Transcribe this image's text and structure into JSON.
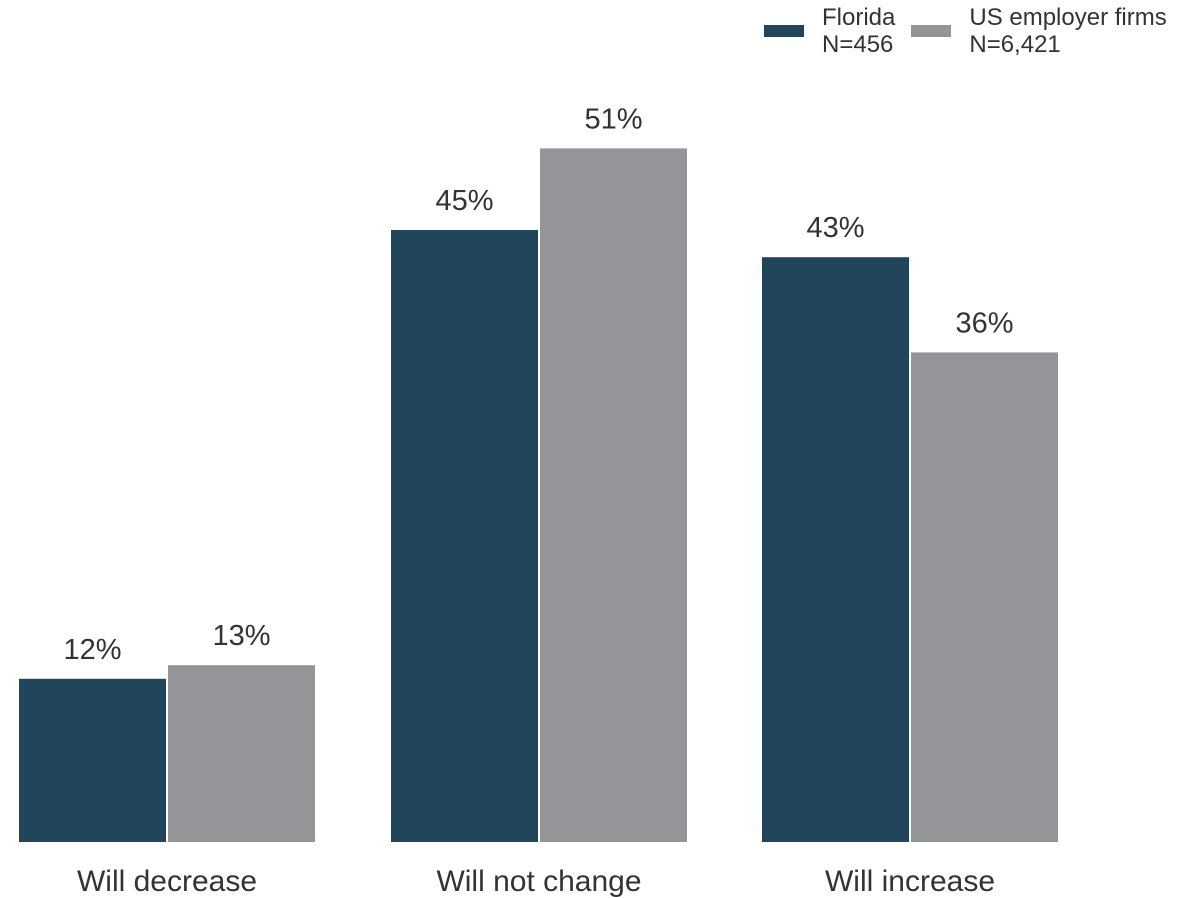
{
  "chart_data": {
    "type": "bar",
    "categories": [
      "Will decrease",
      "Will not change",
      "Will increase"
    ],
    "series": [
      {
        "name": "Florida",
        "sample": "N=456",
        "color": "#21465b",
        "values": [
          12,
          45,
          43
        ],
        "labels": [
          "12%",
          "45%",
          "43%"
        ]
      },
      {
        "name": "US employer firms",
        "sample": "N=6,421",
        "color": "#939598",
        "values": [
          13,
          51,
          36
        ],
        "labels": [
          "13%",
          "51%",
          "36%"
        ]
      }
    ],
    "unit": "%",
    "ylim": [
      0,
      60
    ],
    "grid": false,
    "legend_position": "top-right"
  }
}
